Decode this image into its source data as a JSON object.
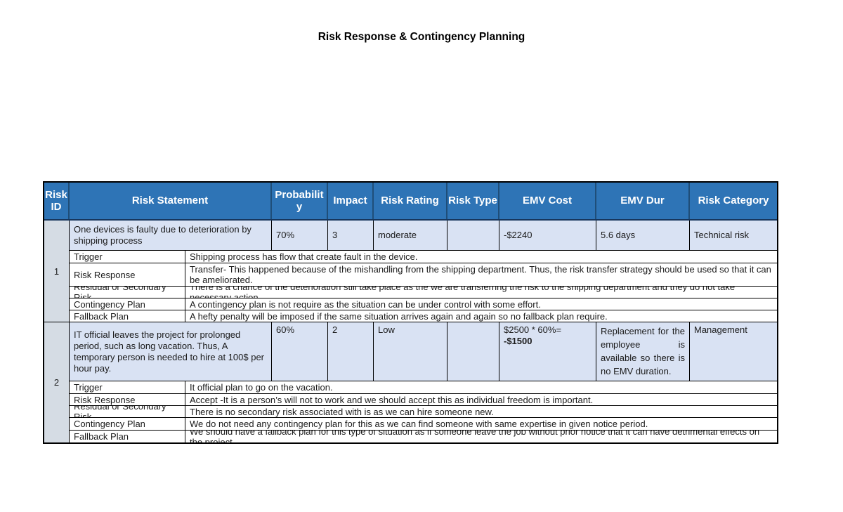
{
  "page": {
    "title": "Risk Response & Contingency Planning"
  },
  "colors": {
    "header_bg": "#2E74B6",
    "header_divider": "#1F4E79",
    "main_row_bg": "#D9E2F3",
    "id_column_bg": "#D5DCE4",
    "border": "#000000"
  },
  "table": {
    "headers": [
      "Risk ID",
      "Risk Statement",
      "Probability",
      "Impact",
      "Risk Rating",
      "Risk Type",
      "EMV Cost",
      "EMV Dur",
      "Risk Category"
    ],
    "risks": [
      {
        "id": "1",
        "statement": "One devices is faulty due to deterioration by shipping process",
        "probability": "70%",
        "impact": "3",
        "rating": "moderate",
        "type": "",
        "emv_cost": "-$2240",
        "emv_cost_bold": "",
        "emv_dur": "5.6 days",
        "category": "Technical risk",
        "subs": [
          {
            "label": "Trigger",
            "value": "Shipping process has flow that create fault in the device."
          },
          {
            "label": "Risk Response",
            "value": "Transfer- This happened because of the mishandling from the shipping department. Thus, the risk transfer strategy should be used so that it can be ameliorated."
          },
          {
            "label": "Residual or Secondary Risk",
            "value": "There is a chance of the deterioration still take place as the we are transferring the risk to the shipping department and they do not take necessary action."
          },
          {
            "label": "Contingency Plan",
            "value": "A contingency plan is not require as the situation can be under control with some effort."
          },
          {
            "label": "Fallback Plan",
            "value": "A hefty penalty will be imposed if the same situation arrives again and again so no fallback plan require."
          }
        ]
      },
      {
        "id": "2",
        "statement": "IT official leaves the project for prolonged period, such as long vacation. Thus, A temporary person is needed to hire at 100$ per hour pay.",
        "probability": "60%",
        "impact": "2",
        "rating": "Low",
        "type": "",
        "emv_cost": "$2500 * 60%= ",
        "emv_cost_bold": "-$1500",
        "emv_dur": "Replacement for the employee is available so there is no EMV duration.",
        "category": "Management",
        "subs": [
          {
            "label": "Trigger",
            "value": "It official plan to go on the vacation."
          },
          {
            "label": "Risk Response",
            "value": "Accept -It is a person’s will not to work and we should accept this as individual freedom is important."
          },
          {
            "label": "Residual or Secondary Risk",
            "value": "There is no secondary risk associated with is as we can hire someone new."
          },
          {
            "label": "Contingency Plan",
            "value": "We do not need any contingency plan for this as we can find someone with same expertise in given notice period."
          },
          {
            "label": "Fallback Plan",
            "value": "We should have a fallback plan for this type of situation as if someone leave the job without prior notice that it can have detrimental effects on the project."
          }
        ]
      }
    ]
  }
}
